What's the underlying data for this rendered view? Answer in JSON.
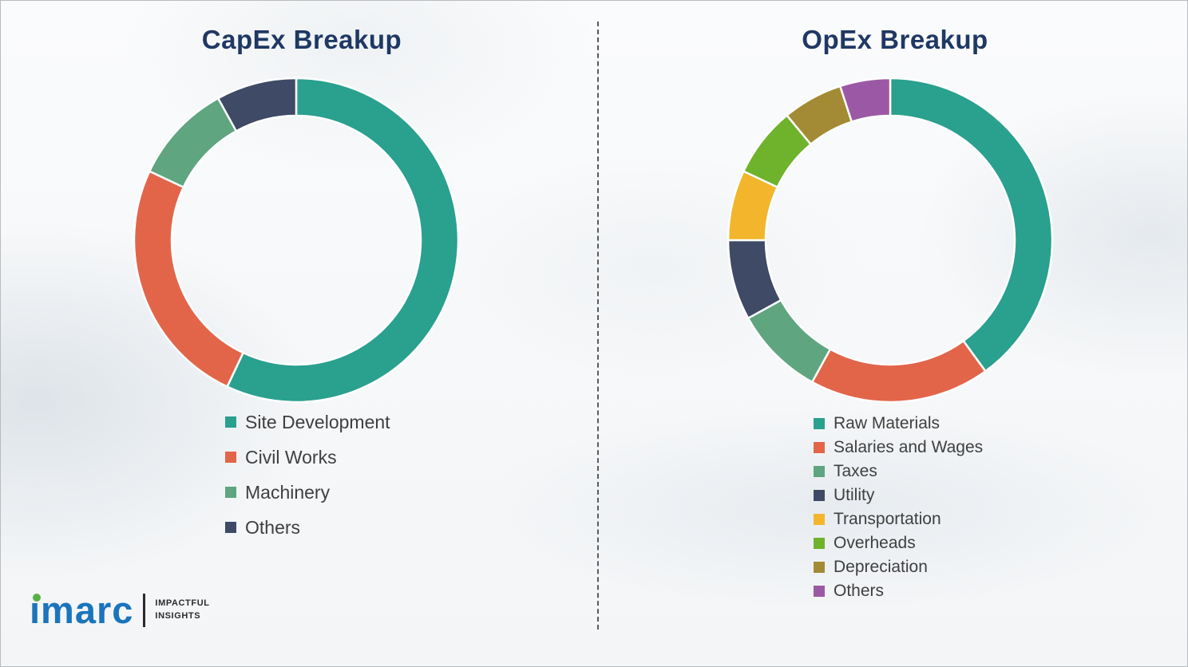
{
  "chart_data": [
    {
      "type": "pie",
      "subtype": "donut",
      "title": "CapEx Breakup",
      "labels": [
        "Site Development",
        "Civil Works",
        "Machinery",
        "Others"
      ],
      "values": [
        57,
        25,
        10,
        8
      ],
      "values_estimated": true,
      "unit": "percent",
      "colors": [
        "#2AA08F",
        "#E2654A",
        "#5FA57F",
        "#3F4A66"
      ],
      "start_angle_deg": 0,
      "direction": "clockwise",
      "legend_position": "below-left"
    },
    {
      "type": "pie",
      "subtype": "donut",
      "title": "OpEx Breakup",
      "labels": [
        "Raw Materials",
        "Salaries and Wages",
        "Taxes",
        "Utility",
        "Transportation",
        "Overheads",
        "Depreciation",
        "Others"
      ],
      "values": [
        40,
        18,
        9,
        8,
        7,
        7,
        6,
        5
      ],
      "values_estimated": true,
      "unit": "percent",
      "colors": [
        "#2AA08F",
        "#E2654A",
        "#5FA57F",
        "#3F4A66",
        "#F2B52C",
        "#6FB22C",
        "#A38A34",
        "#9B59A5"
      ],
      "start_angle_deg": 0,
      "direction": "clockwise",
      "legend_position": "below-left"
    }
  ],
  "logo": {
    "brand": "imarc",
    "tagline_line1": "IMPACTFUL",
    "tagline_line2": "INSIGHTS"
  },
  "theme": {
    "title_color": "#1F3864",
    "legend_text_color": "#3F3F3F",
    "brand_blue": "#1B75BC",
    "brand_dot_green": "#56B047"
  }
}
